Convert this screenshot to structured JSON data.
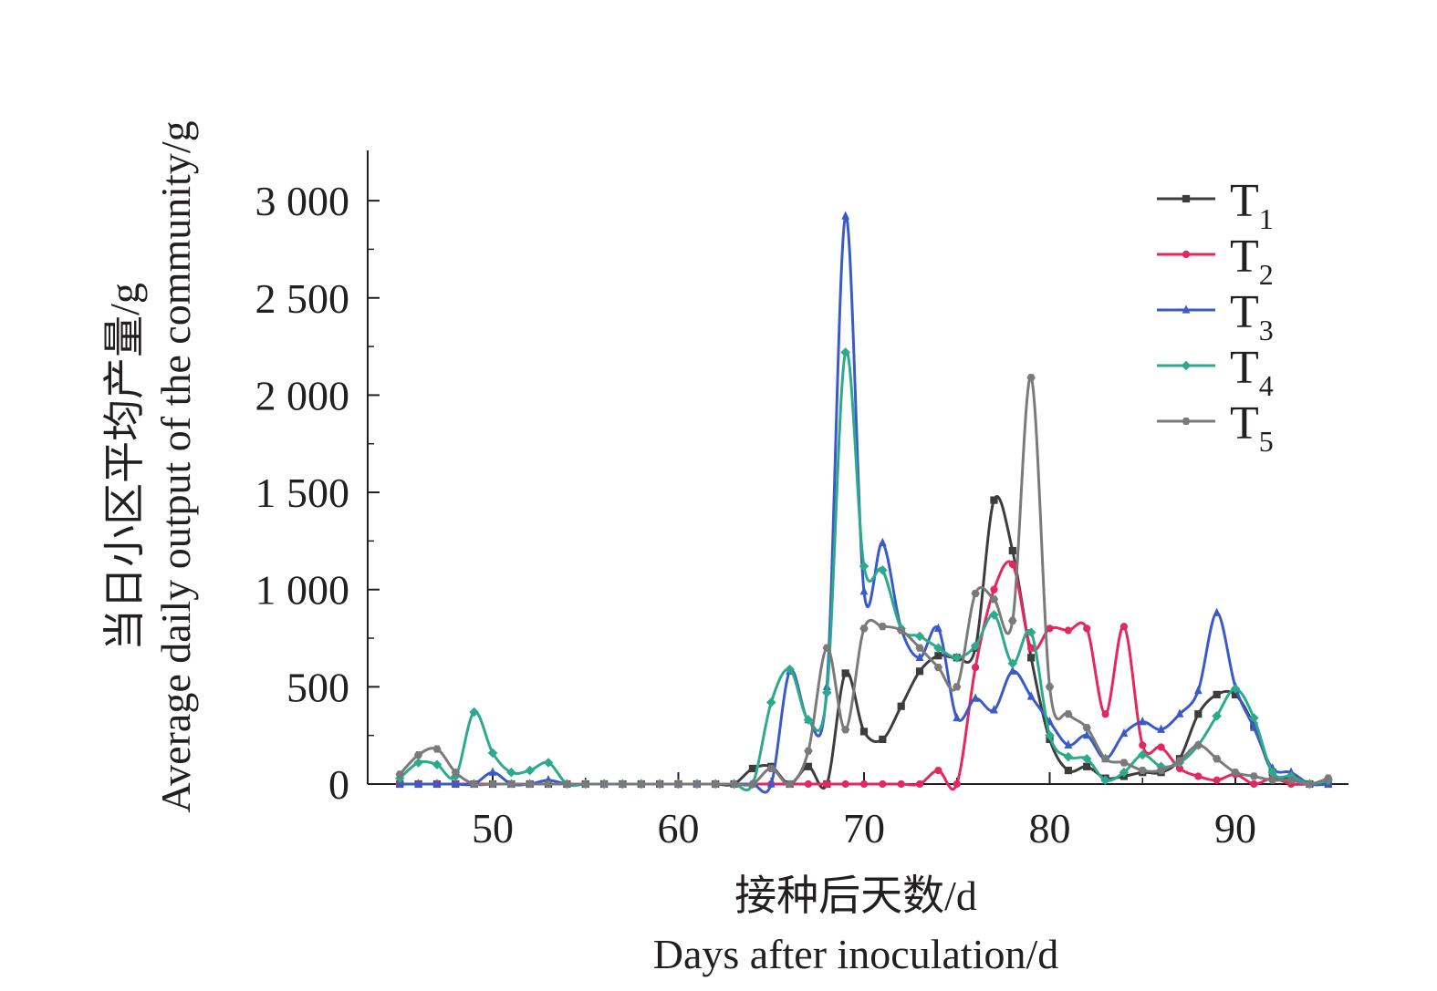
{
  "chart_data": {
    "type": "line",
    "xlabel": [
      "接种后天数/d",
      "Days after inoculation/d"
    ],
    "ylabel": [
      "当日小区平均产量/g",
      "Average daily output of the community/g"
    ],
    "xlim": [
      44,
      96
    ],
    "ylim": [
      0,
      3250
    ],
    "xticks": [
      50,
      60,
      70,
      80,
      90
    ],
    "xtick_labels": [
      "50",
      "60",
      "70",
      "80",
      "90"
    ],
    "yticks": [
      0,
      500,
      1000,
      1500,
      2000,
      2500,
      3000
    ],
    "ytick_labels": [
      "0",
      "500",
      "1 000",
      "1 500",
      "2 000",
      "2 500",
      "3 000"
    ],
    "legend_position": "top-right",
    "x": [
      45,
      46,
      47,
      48,
      49,
      50,
      51,
      52,
      53,
      54,
      55,
      56,
      57,
      58,
      59,
      60,
      61,
      62,
      63,
      64,
      65,
      66,
      67,
      68,
      69,
      70,
      71,
      72,
      73,
      74,
      75,
      76,
      77,
      78,
      79,
      80,
      81,
      82,
      83,
      84,
      85,
      86,
      87,
      88,
      89,
      90,
      91,
      92,
      93,
      94,
      95
    ],
    "series": [
      {
        "name": "T1",
        "label": {
          "main": "T",
          "sub": "1"
        },
        "color": "#3d3d3d",
        "marker": "square",
        "values": [
          0,
          0,
          0,
          0,
          0,
          0,
          0,
          0,
          0,
          0,
          0,
          0,
          0,
          0,
          0,
          0,
          0,
          0,
          0,
          80,
          90,
          0,
          90,
          0,
          570,
          270,
          230,
          400,
          580,
          660,
          650,
          700,
          1460,
          1200,
          650,
          230,
          70,
          90,
          30,
          40,
          60,
          60,
          130,
          360,
          460,
          460,
          300,
          60,
          30,
          0,
          0
        ]
      },
      {
        "name": "T2",
        "label": {
          "main": "T",
          "sub": "2"
        },
        "color": "#e5275e",
        "marker": "circle",
        "values": [
          0,
          0,
          0,
          0,
          0,
          0,
          0,
          0,
          0,
          0,
          0,
          0,
          0,
          0,
          0,
          0,
          0,
          0,
          0,
          0,
          0,
          0,
          0,
          0,
          0,
          0,
          0,
          0,
          0,
          70,
          0,
          600,
          1000,
          1130,
          700,
          800,
          790,
          800,
          360,
          810,
          200,
          190,
          80,
          40,
          20,
          50,
          0,
          30,
          0,
          0,
          0
        ]
      },
      {
        "name": "T3",
        "label": {
          "main": "T",
          "sub": "3"
        },
        "color": "#3a5bc7",
        "marker": "triangle",
        "values": [
          0,
          0,
          0,
          0,
          0,
          60,
          0,
          0,
          20,
          0,
          0,
          0,
          0,
          0,
          0,
          0,
          0,
          0,
          0,
          0,
          0,
          580,
          330,
          500,
          2920,
          990,
          1240,
          800,
          650,
          800,
          340,
          440,
          380,
          580,
          450,
          320,
          200,
          250,
          130,
          260,
          320,
          280,
          360,
          480,
          880,
          500,
          290,
          80,
          60,
          0,
          0
        ]
      },
      {
        "name": "T4",
        "label": {
          "main": "T",
          "sub": "4"
        },
        "color": "#2daa8c",
        "marker": "diamond",
        "values": [
          30,
          110,
          100,
          40,
          370,
          160,
          60,
          70,
          110,
          0,
          0,
          0,
          0,
          0,
          0,
          0,
          0,
          0,
          0,
          0,
          420,
          590,
          330,
          470,
          2220,
          1120,
          1100,
          800,
          760,
          700,
          650,
          710,
          870,
          620,
          780,
          250,
          140,
          130,
          20,
          60,
          150,
          90,
          110,
          200,
          350,
          490,
          340,
          60,
          40,
          0,
          20
        ]
      },
      {
        "name": "T5",
        "label": {
          "main": "T",
          "sub": "5"
        },
        "color": "#7a7a7a",
        "marker": "hexagon",
        "values": [
          50,
          150,
          180,
          60,
          0,
          0,
          0,
          0,
          0,
          0,
          0,
          0,
          0,
          0,
          0,
          0,
          0,
          0,
          0,
          0,
          80,
          0,
          170,
          700,
          280,
          800,
          810,
          790,
          700,
          600,
          500,
          980,
          950,
          840,
          2090,
          500,
          360,
          290,
          130,
          110,
          70,
          70,
          120,
          200,
          130,
          60,
          40,
          20,
          20,
          0,
          30
        ]
      }
    ]
  }
}
